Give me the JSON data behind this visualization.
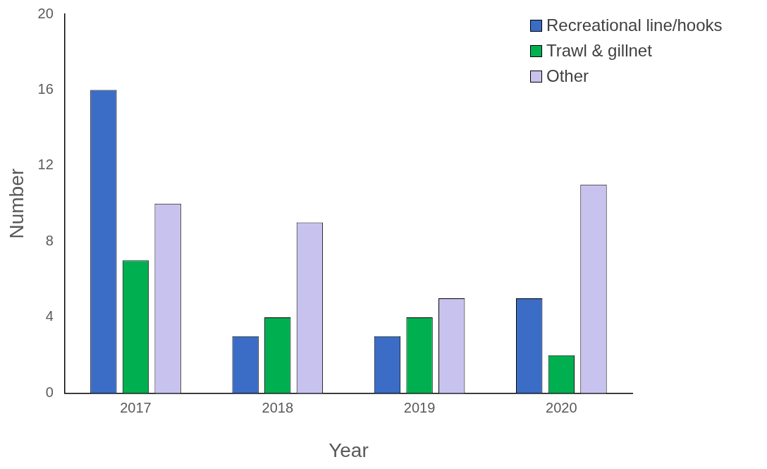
{
  "chart_data": {
    "type": "bar",
    "xlabel": "Year",
    "ylabel": "Number",
    "categories": [
      "2017",
      "2018",
      "2019",
      "2020"
    ],
    "series": [
      {
        "name": "Recreational line/hooks",
        "color": "#3b6cc6",
        "values": [
          16,
          3,
          3,
          5
        ]
      },
      {
        "name": "Trawl & gillnet",
        "color": "#00b050",
        "values": [
          7,
          4,
          4,
          2
        ]
      },
      {
        "name": "Other",
        "color": "#c8c2ee",
        "values": [
          10,
          9,
          5,
          11
        ]
      }
    ],
    "ylim": [
      0,
      20
    ],
    "yticks": [
      0,
      4,
      8,
      12,
      16,
      20
    ],
    "grid": false,
    "legend": "top right"
  }
}
